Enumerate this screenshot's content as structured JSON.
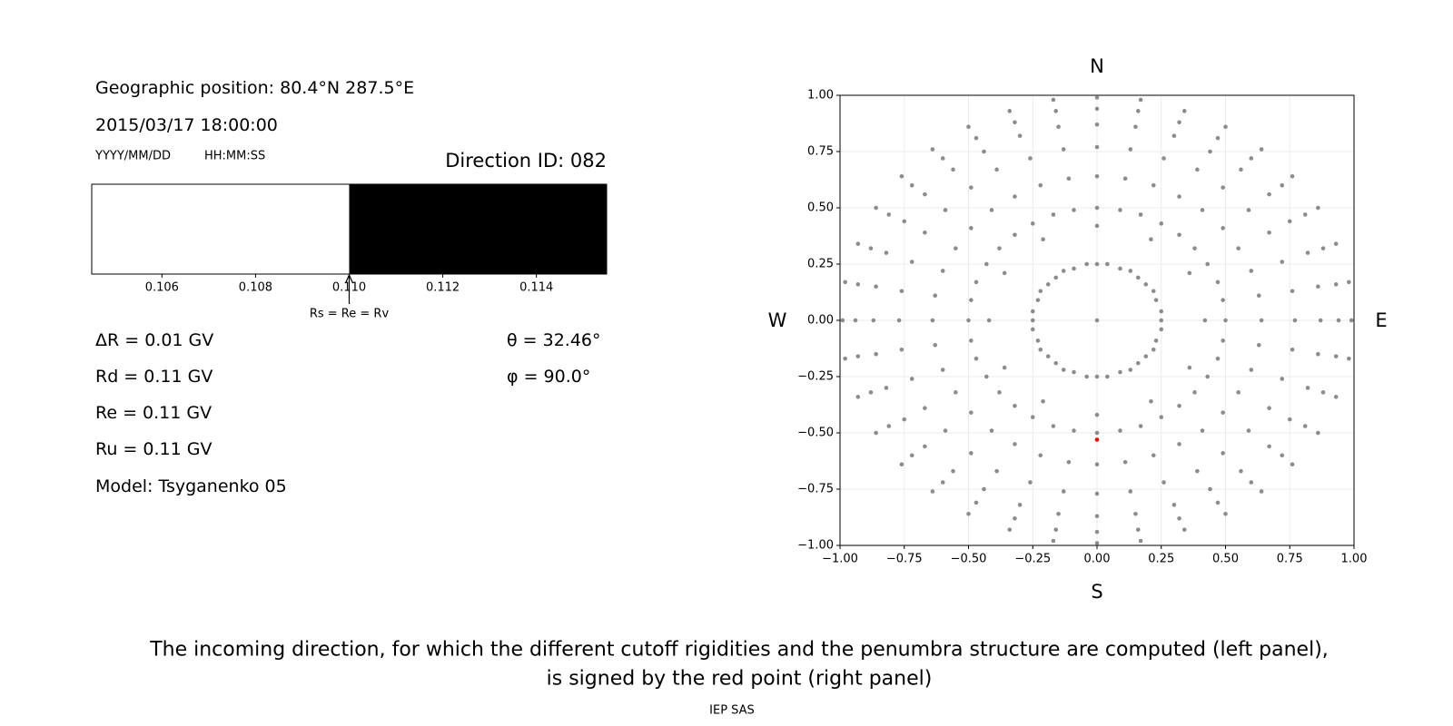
{
  "header": {
    "position": "Geographic position: 80.4°N 287.5°E",
    "datetime": "2015/03/17 18:00:00",
    "date_format": "YYYY/MM/DD",
    "time_format": "HH:MM:SS",
    "direction_id": "Direction ID: 082"
  },
  "results": {
    "delta_r": "ΔR = 0.01 GV",
    "rd": "Rd = 0.11 GV",
    "re": "Re = 0.11 GV",
    "ru": "Ru = 0.11 GV",
    "model": "Model: Tsyganenko 05",
    "theta": "θ = 32.46°",
    "phi": "φ = 90.0°"
  },
  "chart_data": [
    {
      "type": "penumbra",
      "xlim": [
        0.1045,
        0.1155
      ],
      "xticks": [
        0.106,
        0.108,
        {
          "value": 0.11,
          "label": "0.110"
        },
        0.112,
        0.114
      ],
      "segments": [
        {
          "from": 0.1045,
          "to": 0.11,
          "color": "#ffffff"
        },
        {
          "from": 0.11,
          "to": 0.1155,
          "color": "#000000"
        }
      ],
      "marker": {
        "value": 0.11,
        "label": "Rs = Re = Rv"
      }
    },
    {
      "type": "scatter",
      "xlim": [
        -1,
        1
      ],
      "ylim": [
        -1,
        1
      ],
      "grid": true,
      "xticks": [
        {
          "value": -1,
          "label": "−1.00"
        },
        {
          "value": -0.75,
          "label": "−0.75"
        },
        {
          "value": -0.5,
          "label": "−0.50"
        },
        {
          "value": -0.25,
          "label": "−0.25"
        },
        {
          "value": 0,
          "label": "0.00"
        },
        {
          "value": 0.25,
          "label": "0.25"
        },
        {
          "value": 0.5,
          "label": "0.50"
        },
        {
          "value": 0.75,
          "label": "0.75"
        },
        {
          "value": 1,
          "label": "1.00"
        }
      ],
      "yticks": [
        {
          "value": -1,
          "label": "−1.00"
        },
        {
          "value": -0.75,
          "label": "−0.75"
        },
        {
          "value": -0.5,
          "label": "−0.50"
        },
        {
          "value": -0.25,
          "label": "−0.25"
        },
        {
          "value": 0,
          "label": "0.00"
        },
        {
          "value": 0.25,
          "label": "0.25"
        },
        {
          "value": 0.5,
          "label": "0.50"
        },
        {
          "value": 0.75,
          "label": "0.75"
        },
        {
          "value": 1,
          "label": "1.00"
        }
      ],
      "compass": {
        "top": "N",
        "bottom": "S",
        "left": "W",
        "right": "E"
      },
      "series": [
        {
          "color": "#8c8c8c",
          "x": [
            0,
            0.42,
            0.36,
            0.21,
            0,
            -0.21,
            -0.36,
            -0.42,
            -0.36,
            -0.21,
            0,
            0.21,
            0.36
          ],
          "y": [
            0,
            0,
            0.21,
            0.36,
            0.42,
            0.36,
            0.21,
            0,
            -0.21,
            -0.36,
            -0.42,
            -0.36,
            -0.21
          ]
        },
        {
          "color": "#8c8c8c",
          "x": [
            0.25,
            0.25,
            0.23,
            0.22,
            0.19,
            0.16,
            0.13,
            0.09,
            0.04,
            0,
            -0.04,
            -0.09,
            -0.13,
            -0.16,
            -0.19,
            -0.22,
            -0.23,
            -0.25,
            -0.25,
            -0.25,
            -0.23,
            -0.22,
            -0.19,
            -0.16,
            -0.13,
            -0.09,
            -0.04,
            0,
            0.04,
            0.09,
            0.13,
            0.16,
            0.19,
            0.22,
            0.23,
            0.25
          ],
          "y": [
            0,
            0.04,
            0.09,
            0.13,
            0.16,
            0.19,
            0.22,
            0.23,
            0.25,
            0.25,
            0.25,
            0.23,
            0.22,
            0.19,
            0.16,
            0.13,
            0.09,
            0.04,
            0,
            -0.04,
            -0.09,
            -0.13,
            -0.16,
            -0.19,
            -0.22,
            -0.23,
            -0.25,
            -0.25,
            -0.25,
            -0.23,
            -0.22,
            -0.19,
            -0.16,
            -0.13,
            -0.09,
            -0.04
          ]
        },
        {
          "color": "#8c8c8c",
          "x": [
            0.5,
            0.49,
            0.47,
            0.43,
            0.38,
            0.32,
            0.25,
            0.17,
            0.09,
            0,
            -0.09,
            -0.17,
            -0.25,
            -0.32,
            -0.38,
            -0.43,
            -0.47,
            -0.49,
            -0.5,
            -0.49,
            -0.47,
            -0.43,
            -0.38,
            -0.32,
            -0.25,
            -0.17,
            -0.09,
            0,
            0.09,
            0.17,
            0.25,
            0.32,
            0.38,
            0.43,
            0.47,
            0.49
          ],
          "y": [
            0,
            0.09,
            0.17,
            0.25,
            0.32,
            0.38,
            0.43,
            0.47,
            0.49,
            0.5,
            0.49,
            0.47,
            0.43,
            0.38,
            0.32,
            0.25,
            0.17,
            0.09,
            0,
            -0.09,
            -0.17,
            -0.25,
            -0.32,
            -0.38,
            -0.43,
            -0.47,
            -0.49,
            -0.5,
            -0.49,
            -0.47,
            -0.43,
            -0.38,
            -0.32,
            -0.25,
            -0.17,
            -0.09
          ]
        },
        {
          "color": "#8c8c8c",
          "x": [
            0.64,
            0.63,
            0.6,
            0.55,
            0.49,
            0.41,
            0.32,
            0.22,
            0.11,
            0,
            -0.11,
            -0.22,
            -0.32,
            -0.41,
            -0.49,
            -0.55,
            -0.6,
            -0.63,
            -0.64,
            -0.63,
            -0.6,
            -0.55,
            -0.49,
            -0.41,
            -0.32,
            -0.22,
            -0.11,
            0,
            0.11,
            0.22,
            0.32,
            0.41,
            0.49,
            0.55,
            0.6,
            0.63
          ],
          "y": [
            0,
            0.11,
            0.22,
            0.32,
            0.41,
            0.49,
            0.55,
            0.6,
            0.63,
            0.64,
            0.63,
            0.6,
            0.55,
            0.49,
            0.41,
            0.32,
            0.22,
            0.11,
            0,
            -0.11,
            -0.22,
            -0.32,
            -0.41,
            -0.49,
            -0.55,
            -0.6,
            -0.63,
            -0.64,
            -0.63,
            -0.6,
            -0.55,
            -0.49,
            -0.41,
            -0.32,
            -0.22,
            -0.11
          ]
        },
        {
          "color": "#8c8c8c",
          "x": [
            0.77,
            0.76,
            0.72,
            0.67,
            0.59,
            0.49,
            0.39,
            0.26,
            0.13,
            0,
            -0.13,
            -0.26,
            -0.39,
            -0.49,
            -0.59,
            -0.67,
            -0.72,
            -0.76,
            -0.77,
            -0.76,
            -0.72,
            -0.67,
            -0.59,
            -0.49,
            -0.39,
            -0.26,
            -0.13,
            0,
            0.13,
            0.26,
            0.39,
            0.49,
            0.59,
            0.67,
            0.72,
            0.76
          ],
          "y": [
            0,
            0.13,
            0.26,
            0.39,
            0.49,
            0.59,
            0.67,
            0.72,
            0.76,
            0.77,
            0.76,
            0.72,
            0.67,
            0.59,
            0.49,
            0.39,
            0.26,
            0.13,
            0,
            -0.13,
            -0.26,
            -0.39,
            -0.49,
            -0.59,
            -0.67,
            -0.72,
            -0.76,
            -0.77,
            -0.76,
            -0.72,
            -0.67,
            -0.59,
            -0.49,
            -0.39,
            -0.26,
            -0.13
          ]
        },
        {
          "color": "#8c8c8c",
          "x": [
            0.87,
            0.86,
            0.82,
            0.75,
            0.67,
            0.56,
            0.44,
            0.3,
            0.15,
            0,
            -0.15,
            -0.3,
            -0.44,
            -0.56,
            -0.67,
            -0.75,
            -0.82,
            -0.86,
            -0.87,
            -0.86,
            -0.82,
            -0.75,
            -0.67,
            -0.56,
            -0.44,
            -0.3,
            -0.15,
            0,
            0.15,
            0.3,
            0.44,
            0.56,
            0.67,
            0.75,
            0.82,
            0.86
          ],
          "y": [
            0,
            0.15,
            0.3,
            0.44,
            0.56,
            0.67,
            0.75,
            0.82,
            0.86,
            0.87,
            0.86,
            0.82,
            0.75,
            0.67,
            0.56,
            0.44,
            0.3,
            0.15,
            0,
            -0.15,
            -0.3,
            -0.44,
            -0.56,
            -0.67,
            -0.75,
            -0.82,
            -0.86,
            -0.87,
            -0.86,
            -0.82,
            -0.75,
            -0.67,
            -0.56,
            -0.44,
            -0.3,
            -0.15
          ]
        },
        {
          "color": "#8c8c8c",
          "x": [
            0.94,
            0.93,
            0.88,
            0.81,
            0.72,
            0.6,
            0.47,
            0.32,
            0.16,
            0,
            -0.16,
            -0.32,
            -0.47,
            -0.6,
            -0.72,
            -0.81,
            -0.88,
            -0.93,
            -0.94,
            -0.93,
            -0.88,
            -0.81,
            -0.72,
            -0.6,
            -0.47,
            -0.32,
            -0.16,
            0,
            0.16,
            0.32,
            0.47,
            0.6,
            0.72,
            0.81,
            0.88,
            0.93
          ],
          "y": [
            0,
            0.16,
            0.32,
            0.47,
            0.6,
            0.72,
            0.81,
            0.88,
            0.93,
            0.94,
            0.93,
            0.88,
            0.81,
            0.72,
            0.6,
            0.47,
            0.32,
            0.16,
            0,
            -0.16,
            -0.32,
            -0.47,
            -0.6,
            -0.72,
            -0.81,
            -0.88,
            -0.93,
            -0.94,
            -0.93,
            -0.88,
            -0.81,
            -0.72,
            -0.6,
            -0.47,
            -0.32,
            -0.16
          ]
        },
        {
          "color": "#8c8c8c",
          "x": [
            0.99,
            0.98,
            0.93,
            0.86,
            0.76,
            0.64,
            0.5,
            0.34,
            0.17,
            0,
            -0.17,
            -0.34,
            -0.5,
            -0.64,
            -0.76,
            -0.86,
            -0.93,
            -0.98,
            -0.99,
            -0.98,
            -0.93,
            -0.86,
            -0.76,
            -0.64,
            -0.5,
            -0.34,
            -0.17,
            0,
            0.17,
            0.34,
            0.5,
            0.64,
            0.76,
            0.86,
            0.93,
            0.98
          ],
          "y": [
            0,
            0.17,
            0.34,
            0.5,
            0.64,
            0.76,
            0.86,
            0.93,
            0.98,
            0.99,
            0.98,
            0.93,
            0.86,
            0.76,
            0.64,
            0.5,
            0.34,
            0.17,
            0,
            -0.17,
            -0.34,
            -0.5,
            -0.64,
            -0.76,
            -0.86,
            -0.93,
            -0.98,
            -0.99,
            -0.98,
            -0.93,
            -0.86,
            -0.76,
            -0.64,
            -0.5,
            -0.34,
            -0.17
          ]
        },
        {
          "color": "#ff0000",
          "x": [
            0
          ],
          "y": [
            -0.53
          ]
        }
      ]
    }
  ],
  "caption": [
    "The incoming direction, for which the different cutoff rigidities and the penumbra structure are computed (left panel),",
    "is signed by the red point (right panel)"
  ],
  "footer": "IEP SAS"
}
